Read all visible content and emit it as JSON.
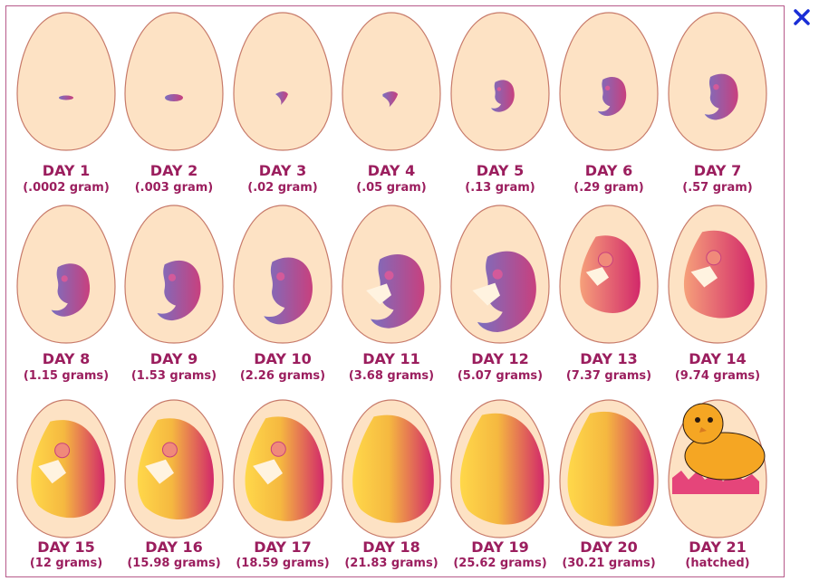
{
  "close_button": {
    "icon": "close-icon",
    "color": "#1a2ed6"
  },
  "colors": {
    "egg_fill": "#fde2c4",
    "egg_stroke": "#c77a6a",
    "label_text": "#9b1e5e",
    "embryo_early_start": "#7a6fc0",
    "embryo_early_end": "#c8407e",
    "embryo_late_start": "#ffd84a",
    "embryo_late_end": "#d2286a",
    "chick": "#f5a623"
  },
  "stages": [
    {
      "day": "DAY 1",
      "weight": "(.0002 gram)"
    },
    {
      "day": "DAY 2",
      "weight": "(.003 gram)"
    },
    {
      "day": "DAY 3",
      "weight": "(.02 gram)"
    },
    {
      "day": "DAY 4",
      "weight": "(.05 gram)"
    },
    {
      "day": "DAY 5",
      "weight": "(.13 gram)"
    },
    {
      "day": "DAY 6",
      "weight": "(.29 gram)"
    },
    {
      "day": "DAY 7",
      "weight": "(.57 gram)"
    },
    {
      "day": "DAY 8",
      "weight": "(1.15 grams)"
    },
    {
      "day": "DAY 9",
      "weight": "(1.53 grams)"
    },
    {
      "day": "DAY 10",
      "weight": "(2.26 grams)"
    },
    {
      "day": "DAY 11",
      "weight": "(3.68 grams)"
    },
    {
      "day": "DAY 12",
      "weight": "(5.07 grams)"
    },
    {
      "day": "DAY 13",
      "weight": "(7.37 grams)"
    },
    {
      "day": "DAY 14",
      "weight": "(9.74 grams)"
    },
    {
      "day": "DAY 15",
      "weight": "(12 grams)"
    },
    {
      "day": "DAY 16",
      "weight": "(15.98 grams)"
    },
    {
      "day": "DAY 17",
      "weight": "(18.59 grams)"
    },
    {
      "day": "DAY 18",
      "weight": "(21.83 grams)"
    },
    {
      "day": "DAY 19",
      "weight": "(25.62 grams)"
    },
    {
      "day": "DAY 20",
      "weight": "(30.21 grams)"
    },
    {
      "day": "DAY 21",
      "weight": "(hatched)"
    }
  ]
}
